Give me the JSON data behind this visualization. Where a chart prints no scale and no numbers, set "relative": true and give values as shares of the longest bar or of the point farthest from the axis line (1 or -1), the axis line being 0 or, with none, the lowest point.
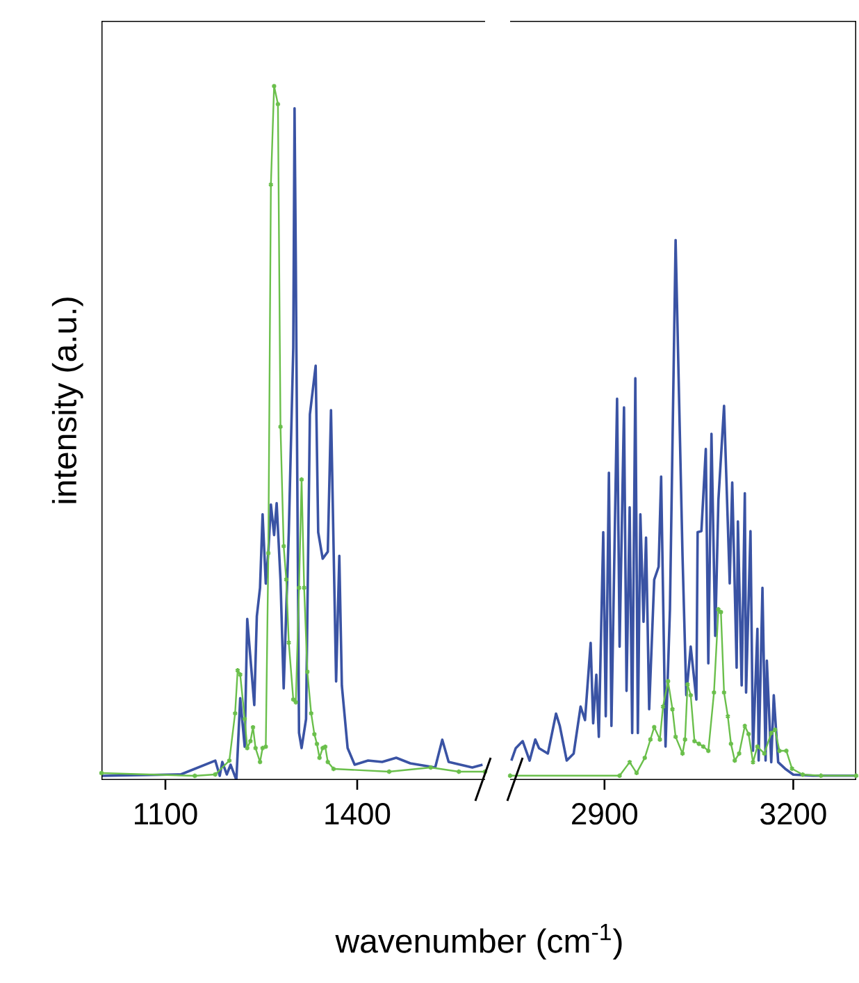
{
  "chart_data": [
    {
      "type": "line",
      "xlabel": "wavenumber (cm$^{-1}$)",
      "ylabel": "intensity (a.u.)",
      "relative": true,
      "xlim": [
        1000,
        1600
      ],
      "xticks": [
        1100,
        1400
      ],
      "series": [
        {
          "color": "#3a53a4",
          "x": [
            1000,
            1124,
            1178,
            1185,
            1189,
            1196,
            1202,
            1211,
            1217,
            1224,
            1228,
            1239,
            1243,
            1248,
            1252,
            1257,
            1261,
            1265,
            1270,
            1274,
            1280,
            1285,
            1293,
            1300,
            1302,
            1304,
            1309,
            1313,
            1320,
            1326,
            1335,
            1339,
            1346,
            1354,
            1359,
            1367,
            1372,
            1376,
            1385,
            1396,
            1417,
            1439,
            1461,
            1483,
            1522,
            1533,
            1543,
            1580,
            1596
          ],
          "values": [
            0.006,
            0.008,
            0.028,
            0.006,
            0.026,
            0.008,
            0.022,
            0,
            0.118,
            0.048,
            0.232,
            0.108,
            0.236,
            0.277,
            0.383,
            0.283,
            0.329,
            0.397,
            0.353,
            0.399,
            0.289,
            0.132,
            0.357,
            0.623,
            0.968,
            0.743,
            0.068,
            0.046,
            0.088,
            0.527,
            0.597,
            0.357,
            0.319,
            0.329,
            0.533,
            0.142,
            0.323,
            0.136,
            0.046,
            0.022,
            0.028,
            0.026,
            0.032,
            0.024,
            0.018,
            0.058,
            0.026,
            0.018,
            0.022
          ]
        },
        {
          "color": "#6abf4b",
          "marker": "cross",
          "x": [
            1000,
            1146,
            1178,
            1200,
            1209,
            1213,
            1217,
            1224,
            1228,
            1233,
            1237,
            1241,
            1248,
            1252,
            1257,
            1261,
            1265,
            1270,
            1276,
            1280,
            1285,
            1289,
            1293,
            1300,
            1304,
            1309,
            1313,
            1317,
            1322,
            1328,
            1333,
            1337,
            1341,
            1346,
            1350,
            1354,
            1363,
            1450,
            1515,
            1559,
            1600
          ],
          "values": [
            0.01,
            0.006,
            0.008,
            0.028,
            0.096,
            0.158,
            0.152,
            0.088,
            0.046,
            0.056,
            0.076,
            0.046,
            0.026,
            0.046,
            0.048,
            0.327,
            0.858,
            1,
            0.974,
            0.509,
            0.337,
            0.289,
            0.198,
            0.116,
            0.112,
            0.277,
            0.433,
            0.277,
            0.156,
            0.096,
            0.066,
            0.052,
            0.032,
            0.046,
            0.048,
            0.026,
            0.016,
            0.012,
            0.018,
            0.012,
            0.012
          ]
        }
      ]
    },
    {
      "type": "line",
      "relative": true,
      "xlim": [
        2750,
        3300
      ],
      "xticks": [
        2900,
        3200
      ],
      "series": [
        {
          "color": "#3a53a4",
          "x": [
            2752,
            2759,
            2770,
            2781,
            2790,
            2796,
            2810,
            2823,
            2829,
            2840,
            2851,
            2862,
            2869,
            2878,
            2882,
            2887,
            2891,
            2898,
            2902,
            2907,
            2911,
            2920,
            2924,
            2931,
            2935,
            2940,
            2944,
            2949,
            2953,
            2957,
            2962,
            2966,
            2971,
            2979,
            2986,
            2990,
            2997,
            3004,
            3013,
            3024,
            3030,
            3037,
            3046,
            3048,
            3054,
            3061,
            3065,
            3070,
            3076,
            3081,
            3090,
            3099,
            3103,
            3110,
            3112,
            3118,
            3123,
            3125,
            3132,
            3136,
            3143,
            3145,
            3151,
            3156,
            3158,
            3165,
            3169,
            3176,
            3187,
            3200,
            3231,
            3300
          ],
          "values": [
            0.036,
            0.059,
            0.072,
            0.036,
            0.075,
            0.059,
            0.049,
            0.123,
            0.1,
            0.036,
            0.049,
            0.136,
            0.111,
            0.254,
            0.105,
            0.195,
            0.08,
            0.459,
            0.118,
            0.569,
            0.1,
            0.706,
            0.247,
            0.69,
            0.165,
            0.505,
            0.087,
            0.744,
            0.087,
            0.492,
            0.293,
            0.449,
            0.131,
            0.371,
            0.395,
            0.562,
            0.062,
            0.316,
            1,
            0.415,
            0.157,
            0.247,
            0.149,
            0.459,
            0.461,
            0.613,
            0.216,
            0.641,
            0.267,
            0.518,
            0.693,
            0.364,
            0.551,
            0.208,
            0.479,
            0.175,
            0.531,
            0.162,
            0.461,
            0.054,
            0.28,
            0.036,
            0.356,
            0.036,
            0.221,
            0.033,
            0.157,
            0.033,
            0.021,
            0.01,
            0.008,
            0.008
          ]
        },
        {
          "color": "#6abf4b",
          "marker": "cross",
          "x": [
            2750,
            2924,
            2940,
            2951,
            2964,
            2973,
            2979,
            2988,
            2993,
            3001,
            3008,
            3013,
            3024,
            3028,
            3032,
            3037,
            3043,
            3050,
            3057,
            3065,
            3074,
            3081,
            3085,
            3090,
            3096,
            3101,
            3107,
            3114,
            3123,
            3129,
            3136,
            3143,
            3154,
            3165,
            3171,
            3178,
            3189,
            3198,
            3215,
            3244,
            3300
          ],
          "values": [
            0.008,
            0.008,
            0.033,
            0.013,
            0.041,
            0.075,
            0.098,
            0.075,
            0.136,
            0.183,
            0.131,
            0.08,
            0.049,
            0.075,
            0.177,
            0.157,
            0.072,
            0.067,
            0.062,
            0.054,
            0.162,
            0.316,
            0.311,
            0.162,
            0.118,
            0.067,
            0.036,
            0.049,
            0.1,
            0.085,
            0.033,
            0.062,
            0.049,
            0.087,
            0.093,
            0.054,
            0.054,
            0.021,
            0.01,
            0.008,
            0.008
          ]
        }
      ]
    }
  ]
}
